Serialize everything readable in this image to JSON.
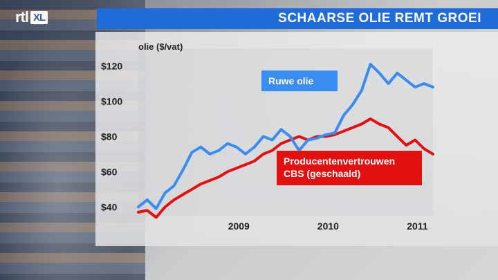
{
  "logo": {
    "brand": "rtl",
    "suffix": "XL"
  },
  "header": {
    "title": "SCHAARSE OLIE REMT GROEI"
  },
  "colors": {
    "title_bar": "#1f6cd8",
    "crude": "#3b8cf0",
    "producers": "#e21010"
  },
  "chart_data": {
    "type": "line",
    "ylabel": "olie ($/vat)",
    "ylim": [
      35,
      130
    ],
    "y_ticks": [
      "$40",
      "$60",
      "$80",
      "$100",
      "$120"
    ],
    "y_tick_values": [
      40,
      60,
      80,
      100,
      120
    ],
    "x_ticks": [
      "2009",
      "2010",
      "2011"
    ],
    "x_tick_values": [
      2009.0,
      2010.0,
      2011.0
    ],
    "xlim": [
      2008.2,
      2011.5
    ],
    "series": [
      {
        "name": "Ruwe olie",
        "label_lines": [
          "Ruwe olie"
        ],
        "color": "#3b8cf0",
        "x": [
          2008.2,
          2008.3,
          2008.4,
          2008.5,
          2008.6,
          2008.7,
          2008.8,
          2008.9,
          2009.0,
          2009.1,
          2009.2,
          2009.3,
          2009.4,
          2009.5,
          2009.6,
          2009.7,
          2009.8,
          2009.9,
          2010.0,
          2010.1,
          2010.2,
          2010.3,
          2010.4,
          2010.5,
          2010.6,
          2010.7,
          2010.8,
          2010.9,
          2011.0,
          2011.1,
          2011.2,
          2011.3,
          2011.4,
          2011.5
        ],
        "values": [
          40,
          44,
          39,
          48,
          52,
          61,
          71,
          74,
          70,
          72,
          76,
          74,
          70,
          74,
          80,
          78,
          84,
          80,
          72,
          78,
          79,
          81,
          82,
          92,
          98,
          106,
          121,
          116,
          110,
          116,
          112,
          108,
          110,
          108
        ]
      },
      {
        "name": "Producentenvertrouwen CBS (geschaald)",
        "label_lines": [
          "Producentenvertrouwen",
          "CBS (geschaald)"
        ],
        "color": "#e21010",
        "x": [
          2008.2,
          2008.3,
          2008.4,
          2008.5,
          2008.6,
          2008.7,
          2008.8,
          2008.9,
          2009.0,
          2009.1,
          2009.2,
          2009.3,
          2009.4,
          2009.5,
          2009.6,
          2009.7,
          2009.8,
          2009.9,
          2010.0,
          2010.1,
          2010.2,
          2010.3,
          2010.4,
          2010.5,
          2010.6,
          2010.7,
          2010.8,
          2010.9,
          2011.0,
          2011.1,
          2011.2,
          2011.3,
          2011.4,
          2011.5
        ],
        "values": [
          37,
          38,
          34,
          40,
          44,
          47,
          50,
          53,
          55,
          57,
          60,
          62,
          64,
          66,
          70,
          72,
          76,
          78,
          80,
          78,
          80,
          80,
          81,
          83,
          85,
          87,
          90,
          87,
          85,
          80,
          75,
          78,
          73,
          70
        ]
      }
    ]
  }
}
